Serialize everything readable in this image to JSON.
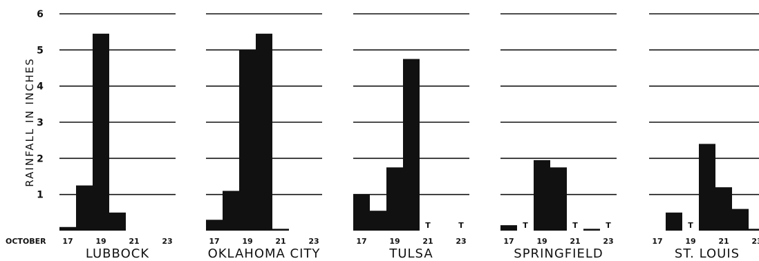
{
  "chart_data": {
    "type": "bar",
    "ylabel": "RAINFALL IN INCHES",
    "x_prefix": "OCTOBER",
    "ylim": [
      0,
      6
    ],
    "y_ticks": [
      1,
      2,
      3,
      4,
      5,
      6
    ],
    "x_days": [
      17,
      18,
      19,
      20,
      21,
      22,
      23
    ],
    "x_tick_labels": [
      "17",
      "19",
      "21",
      "23"
    ],
    "trace_marker": "T",
    "grid": true,
    "panels": [
      {
        "title": "LUBBOCK",
        "values": [
          0.1,
          1.25,
          5.45,
          0.5,
          0,
          0,
          0
        ],
        "trace_days": []
      },
      {
        "title": "OKLAHOMA CITY",
        "values": [
          0.3,
          1.1,
          5.0,
          5.45,
          0.05,
          0,
          0
        ],
        "trace_days": []
      },
      {
        "title": "TULSA",
        "values": [
          1.0,
          0.55,
          1.75,
          4.75,
          0,
          0,
          0
        ],
        "trace_days": [
          21,
          23
        ]
      },
      {
        "title": "SPRINGFIELD",
        "values": [
          0.15,
          0,
          1.95,
          1.75,
          0,
          0.05,
          0
        ],
        "trace_days": [
          18,
          21,
          23
        ]
      },
      {
        "title": "ST. LOUIS",
        "values": [
          0,
          0.5,
          0,
          2.4,
          1.2,
          0.6,
          0.05
        ],
        "trace_days": [
          19
        ]
      }
    ]
  }
}
